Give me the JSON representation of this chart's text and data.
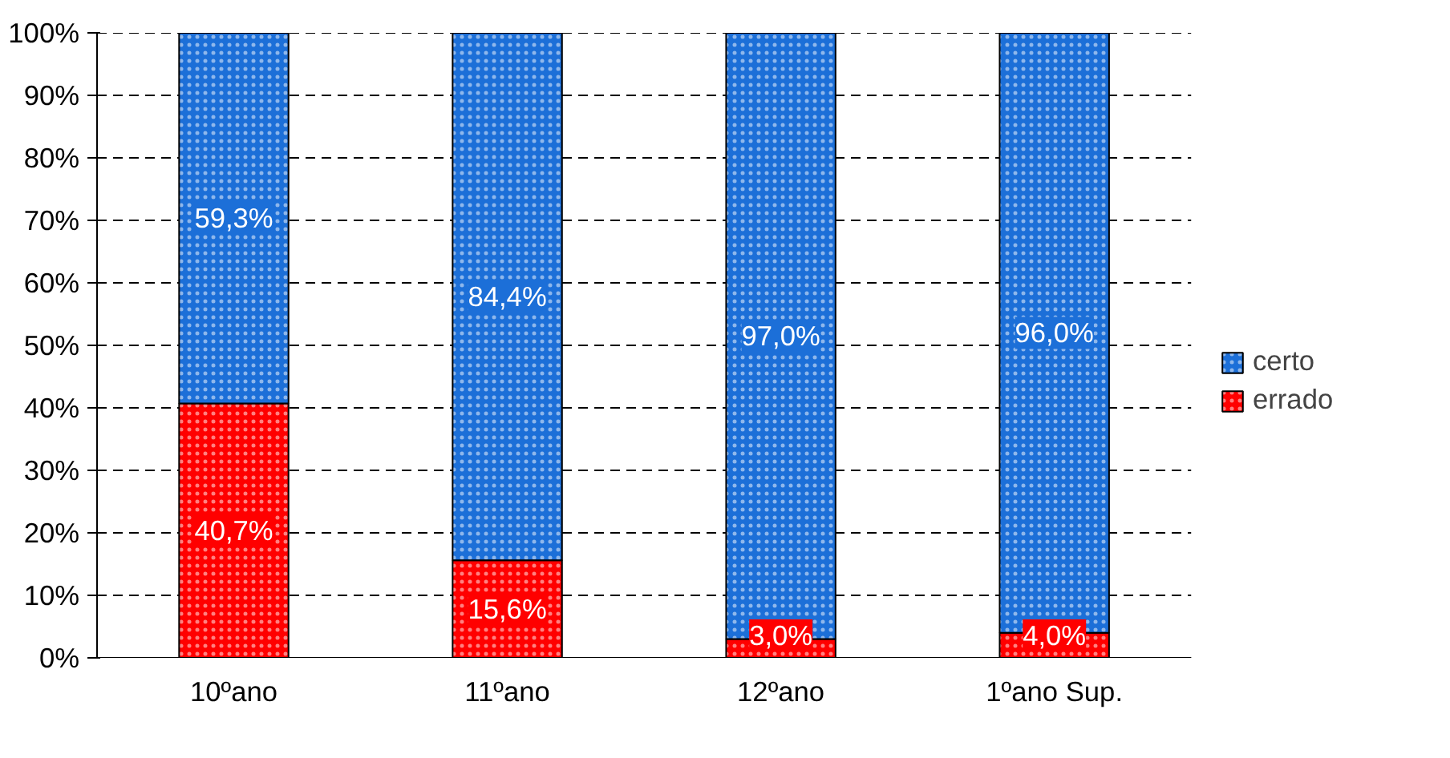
{
  "chart_data": {
    "type": "bar",
    "stacked": true,
    "categories": [
      "10ºano",
      "11ºano",
      "12ºano",
      "1ºano Sup."
    ],
    "series": [
      {
        "name": "errado",
        "color": "#ff0000",
        "values": [
          40.7,
          15.6,
          3.0,
          4.0
        ],
        "value_labels": [
          "40,7%",
          "15,6%",
          "3,0%",
          "4,0%"
        ]
      },
      {
        "name": "certo",
        "color": "#1c6fd8",
        "values": [
          59.3,
          84.4,
          97.0,
          96.0
        ],
        "value_labels": [
          "59,3%",
          "84,4%",
          "97,0%",
          "96,0%"
        ]
      }
    ],
    "ylim": [
      0,
      100
    ],
    "yticks": [
      {
        "value": 0,
        "label": "0%"
      },
      {
        "value": 10,
        "label": "10%"
      },
      {
        "value": 20,
        "label": "20%"
      },
      {
        "value": 30,
        "label": "30%"
      },
      {
        "value": 40,
        "label": "40%"
      },
      {
        "value": 50,
        "label": "50%"
      },
      {
        "value": 60,
        "label": "60%"
      },
      {
        "value": 70,
        "label": "70%"
      },
      {
        "value": 80,
        "label": "80%"
      },
      {
        "value": 90,
        "label": "90%"
      },
      {
        "value": 100,
        "label": "100%"
      }
    ],
    "grid": "y",
    "legend": "right"
  }
}
